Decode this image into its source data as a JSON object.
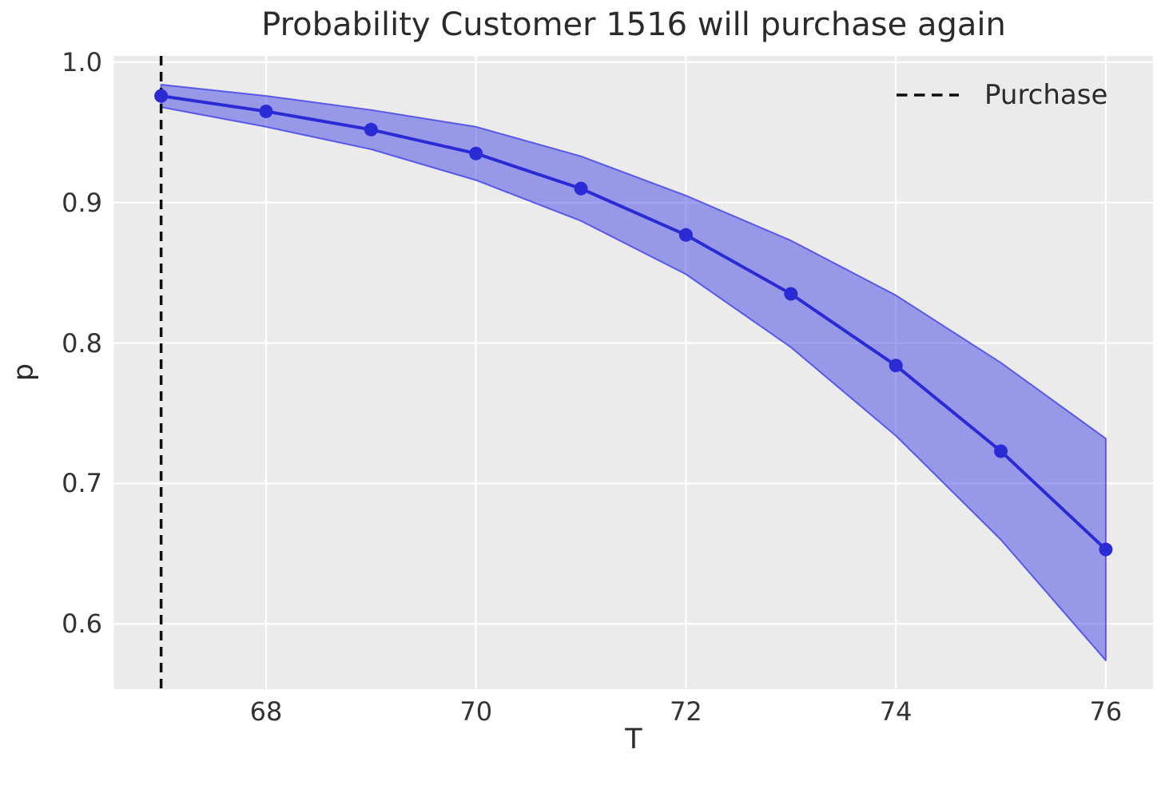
{
  "title": "Probability Customer 1516 will purchase again",
  "chart_data": {
    "type": "line",
    "title": "Probability Customer 1516 will purchase again",
    "xlabel": "T",
    "ylabel": "p",
    "x": [
      67,
      68,
      69,
      70,
      71,
      72,
      73,
      74,
      75,
      76
    ],
    "series": [
      {
        "name": "purchase-probability-mean",
        "values": [
          0.976,
          0.965,
          0.952,
          0.935,
          0.91,
          0.877,
          0.835,
          0.784,
          0.723,
          0.653
        ]
      },
      {
        "name": "ci-upper",
        "values": [
          0.984,
          0.976,
          0.966,
          0.954,
          0.933,
          0.905,
          0.873,
          0.834,
          0.786,
          0.732
        ]
      },
      {
        "name": "ci-lower",
        "values": [
          0.968,
          0.954,
          0.938,
          0.916,
          0.887,
          0.849,
          0.797,
          0.734,
          0.66,
          0.574
        ]
      }
    ],
    "vline": {
      "x": 67,
      "label": "Purchase",
      "style": "dashed",
      "color": "#0d0d0d"
    },
    "xticks": [
      68,
      70,
      72,
      74,
      76
    ],
    "yticks": [
      1.0,
      0.9,
      0.8,
      0.7,
      0.6
    ],
    "ytick_labels": [
      "1.0",
      "0.9",
      "0.8",
      "0.7",
      "0.6"
    ],
    "xlim": [
      66.55,
      76.45
    ],
    "ylim": [
      0.5535,
      1.0045
    ],
    "grid": true,
    "gridline_color": "#ffffff",
    "plot_bg": "#ebebeb",
    "line_color": "#2b2bd5",
    "band_color": "#4646e8",
    "band_alpha": 0.5,
    "legend_position": "upper right"
  },
  "legend": {
    "position": "upper right",
    "items": [
      {
        "label": "Purchase",
        "swatch": "black-dashed-line"
      }
    ]
  }
}
